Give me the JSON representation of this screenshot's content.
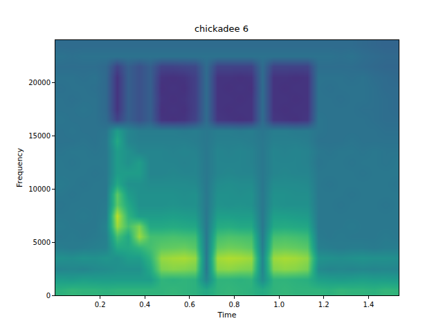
{
  "chart_data": {
    "type": "heatmap",
    "title": "chickadee 6",
    "x_label": "Time",
    "y_label": "Frequency",
    "color": "Viridis",
    "grid": false,
    "xlim": [
      0,
      1.535
    ],
    "ylim": [
      0,
      24000
    ],
    "xticks": [
      {
        "value": 0.2,
        "label": "0.2"
      },
      {
        "value": 0.4,
        "label": "0.4"
      },
      {
        "value": 0.6,
        "label": "0.6"
      },
      {
        "value": 0.8,
        "label": "0.8"
      },
      {
        "value": 1.0,
        "label": "1.0"
      },
      {
        "value": 1.2,
        "label": "1.2"
      },
      {
        "value": 1.4,
        "label": "1.4"
      }
    ],
    "yticks": [
      0,
      5000,
      10000,
      15000,
      20000
    ],
    "zlim": [
      0,
      10
    ],
    "x": [
      0.025,
      0.075,
      0.125,
      0.175,
      0.225,
      0.275,
      0.325,
      0.375,
      0.425,
      0.475,
      0.525,
      0.575,
      0.625,
      0.675,
      0.725,
      0.775,
      0.825,
      0.875,
      0.925,
      0.975,
      1.025,
      1.075,
      1.125,
      1.175,
      1.225,
      1.275,
      1.325,
      1.375,
      1.425,
      1.475,
      1.525
    ],
    "y": [
      500,
      1500,
      2500,
      3500,
      4500,
      5500,
      6500,
      7500,
      8500,
      9500,
      10500,
      11500,
      12500,
      13500,
      14500,
      15500,
      16500,
      17500,
      18500,
      19500,
      20500,
      21500,
      22500,
      23500
    ],
    "z_by_time": [
      [
        6.4,
        5.5,
        4.5,
        5.0,
        4.2,
        4.0,
        4.1,
        4.0,
        3.9,
        4.0,
        4.1,
        4.0,
        4.0,
        3.9,
        3.8,
        3.8,
        3.9,
        3.8,
        3.8,
        3.7,
        3.8,
        3.6,
        3.8,
        3.5
      ],
      [
        6.6,
        5.4,
        4.6,
        4.9,
        4.1,
        4.1,
        4.0,
        4.0,
        4.0,
        3.9,
        4.0,
        4.0,
        3.9,
        4.0,
        3.8,
        3.9,
        3.8,
        3.8,
        3.7,
        3.8,
        3.8,
        3.6,
        3.7,
        3.5
      ],
      [
        6.5,
        5.6,
        4.5,
        5.1,
        4.2,
        4.0,
        4.0,
        4.1,
        4.0,
        4.0,
        3.9,
        4.0,
        4.0,
        4.0,
        3.9,
        3.8,
        3.8,
        3.9,
        3.8,
        3.8,
        3.7,
        3.6,
        3.8,
        3.5
      ],
      [
        6.5,
        5.5,
        4.7,
        5.0,
        4.3,
        4.1,
        4.0,
        4.0,
        4.0,
        4.0,
        4.0,
        3.9,
        4.0,
        3.9,
        3.8,
        3.8,
        3.8,
        3.8,
        3.8,
        3.7,
        3.8,
        3.6,
        3.8,
        3.5
      ],
      [
        6.4,
        5.5,
        4.8,
        5.2,
        4.4,
        4.3,
        4.4,
        4.2,
        4.1,
        4.0,
        4.0,
        4.0,
        4.0,
        4.0,
        4.0,
        3.9,
        3.5,
        3.4,
        3.4,
        3.4,
        3.4,
        3.4,
        3.8,
        3.5
      ],
      [
        6.5,
        5.5,
        5.0,
        5.0,
        6.0,
        7.0,
        8.5,
        9.0,
        7.5,
        7.5,
        6.0,
        5.5,
        5.5,
        5.5,
        6.0,
        5.5,
        2.0,
        1.5,
        1.5,
        1.5,
        1.5,
        2.0,
        3.8,
        3.5
      ],
      [
        6.5,
        5.5,
        5.0,
        5.5,
        6.0,
        6.0,
        7.0,
        6.5,
        6.0,
        5.5,
        5.0,
        5.5,
        5.0,
        5.0,
        4.5,
        4.5,
        3.0,
        3.0,
        3.0,
        3.0,
        3.0,
        3.0,
        3.8,
        3.5
      ],
      [
        6.5,
        5.5,
        5.0,
        5.5,
        6.5,
        8.5,
        8.0,
        5.5,
        5.0,
        5.0,
        5.0,
        5.5,
        5.5,
        4.5,
        4.3,
        4.2,
        2.5,
        2.5,
        2.5,
        2.5,
        2.5,
        2.5,
        3.8,
        3.5
      ],
      [
        6.5,
        5.5,
        6.0,
        6.5,
        7.0,
        7.0,
        6.0,
        5.5,
        5.0,
        5.0,
        4.8,
        4.5,
        4.5,
        4.5,
        4.3,
        4.2,
        3.0,
        3.0,
        3.0,
        3.0,
        3.0,
        3.0,
        3.8,
        3.5
      ],
      [
        6.5,
        6.5,
        8.0,
        8.4,
        7.5,
        7.0,
        6.0,
        5.5,
        5.0,
        5.0,
        4.8,
        4.5,
        4.5,
        4.5,
        4.3,
        4.2,
        1.5,
        1.4,
        1.5,
        1.4,
        1.5,
        2.0,
        3.8,
        3.5
      ],
      [
        6.6,
        6.4,
        8.2,
        8.6,
        7.6,
        7.1,
        6.1,
        5.6,
        5.1,
        5.0,
        4.8,
        4.6,
        4.5,
        4.4,
        4.3,
        4.2,
        1.4,
        1.5,
        1.4,
        1.5,
        1.4,
        2.0,
        3.8,
        3.5
      ],
      [
        6.5,
        6.5,
        8.1,
        8.7,
        7.7,
        7.0,
        6.0,
        5.5,
        5.0,
        4.9,
        4.8,
        4.5,
        4.4,
        4.5,
        4.3,
        4.1,
        1.5,
        1.4,
        1.5,
        1.4,
        1.5,
        2.1,
        3.8,
        3.5
      ],
      [
        6.4,
        6.4,
        7.9,
        8.4,
        7.4,
        6.9,
        5.9,
        5.4,
        5.0,
        5.0,
        4.7,
        4.5,
        4.5,
        4.4,
        4.2,
        4.2,
        2.0,
        1.9,
        1.9,
        1.9,
        1.9,
        2.2,
        3.8,
        3.5
      ],
      [
        6.0,
        4.5,
        4.0,
        4.0,
        4.0,
        4.0,
        4.0,
        4.0,
        4.0,
        4.0,
        4.0,
        4.0,
        4.0,
        4.0,
        4.0,
        4.0,
        3.5,
        3.5,
        3.5,
        3.5,
        3.5,
        3.5,
        3.8,
        3.5
      ],
      [
        6.5,
        6.5,
        8.2,
        8.6,
        7.6,
        7.0,
        6.1,
        5.6,
        5.1,
        5.0,
        4.8,
        4.5,
        4.5,
        4.5,
        4.3,
        4.2,
        1.6,
        1.5,
        1.5,
        1.5,
        1.5,
        2.0,
        3.8,
        3.5
      ],
      [
        6.6,
        6.5,
        8.3,
        8.8,
        7.8,
        7.2,
        6.2,
        5.6,
        5.0,
        5.0,
        4.9,
        4.6,
        4.5,
        4.4,
        4.3,
        4.2,
        1.5,
        1.4,
        1.5,
        1.4,
        1.5,
        2.0,
        3.8,
        3.5
      ],
      [
        6.5,
        6.4,
        8.1,
        8.7,
        7.7,
        7.1,
        6.0,
        5.5,
        5.1,
        4.9,
        4.8,
        4.5,
        4.5,
        4.5,
        4.3,
        4.1,
        1.4,
        1.5,
        1.4,
        1.5,
        1.4,
        2.0,
        3.8,
        3.5
      ],
      [
        6.4,
        6.5,
        8.0,
        8.5,
        7.5,
        7.0,
        6.0,
        5.5,
        5.0,
        5.0,
        4.8,
        4.5,
        4.4,
        4.4,
        4.2,
        4.2,
        1.5,
        1.5,
        1.5,
        1.4,
        1.5,
        2.0,
        3.8,
        3.5
      ],
      [
        6.1,
        4.8,
        4.5,
        4.5,
        4.2,
        4.1,
        4.0,
        4.0,
        4.0,
        4.0,
        4.0,
        4.0,
        4.0,
        4.0,
        4.0,
        3.9,
        3.5,
        3.5,
        3.5,
        3.5,
        3.5,
        3.5,
        3.8,
        3.5
      ],
      [
        6.5,
        6.5,
        8.1,
        8.5,
        7.6,
        7.0,
        6.0,
        5.6,
        5.1,
        5.0,
        4.8,
        4.5,
        4.5,
        4.5,
        4.3,
        4.2,
        1.6,
        1.5,
        1.5,
        1.5,
        1.5,
        2.0,
        3.8,
        3.5
      ],
      [
        6.6,
        6.5,
        8.3,
        8.7,
        7.7,
        7.1,
        6.1,
        5.6,
        5.0,
        5.0,
        4.8,
        4.6,
        4.5,
        4.4,
        4.3,
        4.2,
        1.5,
        1.4,
        1.5,
        1.4,
        1.5,
        2.0,
        3.8,
        3.5
      ],
      [
        6.5,
        6.4,
        8.2,
        8.6,
        7.6,
        7.0,
        6.0,
        5.5,
        5.0,
        4.9,
        4.8,
        4.5,
        4.5,
        4.5,
        4.3,
        4.1,
        1.4,
        1.5,
        1.4,
        1.5,
        1.4,
        2.0,
        3.8,
        3.5
      ],
      [
        6.5,
        6.3,
        7.9,
        8.3,
        7.4,
        6.8,
        5.9,
        5.4,
        5.0,
        4.9,
        4.7,
        4.5,
        4.4,
        4.4,
        4.2,
        4.1,
        1.6,
        1.5,
        1.5,
        1.5,
        1.5,
        2.0,
        3.8,
        3.5
      ],
      [
        6.5,
        5.6,
        4.7,
        5.1,
        4.3,
        4.1,
        4.0,
        4.0,
        4.0,
        4.0,
        4.0,
        4.0,
        3.9,
        4.0,
        3.8,
        3.9,
        3.9,
        3.8,
        3.8,
        3.8,
        3.8,
        3.6,
        3.8,
        3.5
      ],
      [
        6.4,
        5.5,
        4.5,
        5.0,
        4.2,
        4.0,
        4.0,
        4.0,
        4.0,
        4.0,
        3.9,
        4.0,
        4.0,
        3.9,
        3.8,
        3.8,
        3.8,
        3.8,
        3.8,
        3.7,
        3.8,
        3.6,
        3.8,
        3.5
      ],
      [
        6.6,
        5.4,
        4.6,
        4.9,
        4.1,
        4.1,
        4.0,
        4.0,
        3.9,
        4.0,
        4.0,
        4.0,
        4.0,
        4.0,
        3.8,
        3.8,
        3.8,
        3.8,
        3.7,
        3.8,
        3.8,
        3.6,
        3.7,
        3.5
      ],
      [
        6.5,
        5.5,
        4.5,
        5.0,
        4.2,
        4.0,
        4.1,
        4.0,
        4.0,
        3.9,
        4.0,
        4.0,
        3.9,
        4.0,
        3.9,
        3.8,
        3.8,
        3.8,
        3.8,
        3.8,
        3.7,
        3.6,
        3.8,
        3.5
      ],
      [
        6.5,
        5.6,
        4.6,
        5.1,
        4.2,
        4.0,
        4.0,
        4.0,
        4.0,
        4.0,
        4.0,
        3.9,
        4.0,
        3.9,
        3.8,
        3.8,
        3.8,
        3.7,
        3.8,
        3.8,
        3.8,
        3.5,
        3.6,
        3.4
      ],
      [
        6.4,
        5.5,
        4.5,
        5.0,
        4.1,
        4.0,
        4.0,
        4.0,
        4.0,
        4.0,
        4.0,
        4.0,
        4.0,
        4.0,
        3.8,
        3.8,
        3.7,
        3.7,
        3.7,
        3.7,
        3.6,
        3.4,
        3.5,
        3.3
      ],
      [
        6.6,
        5.5,
        4.6,
        5.0,
        4.2,
        4.1,
        4.0,
        4.0,
        3.9,
        4.0,
        4.0,
        4.0,
        3.9,
        3.9,
        3.8,
        3.7,
        3.6,
        3.6,
        3.6,
        3.5,
        3.5,
        3.3,
        3.4,
        3.2
      ],
      [
        6.5,
        5.4,
        4.5,
        4.9,
        4.2,
        4.0,
        4.0,
        4.0,
        4.0,
        4.0,
        3.9,
        4.0,
        4.0,
        3.9,
        3.8,
        3.7,
        3.6,
        3.5,
        3.5,
        3.5,
        3.4,
        3.3,
        3.4,
        3.2
      ]
    ]
  }
}
